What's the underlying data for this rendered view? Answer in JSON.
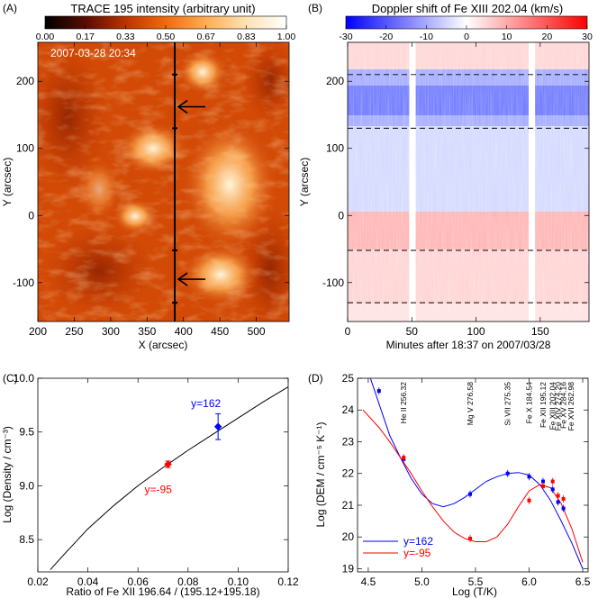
{
  "figure": {
    "panel_labels": [
      "(A)",
      "(B)",
      "(C)",
      "(D)"
    ]
  },
  "chart_data": [
    {
      "panel": "(A)",
      "type": "heatmap",
      "title": "TRACE 195 intensity (arbitrary unit)",
      "colorbar": {
        "ticks": [
          "0.00",
          "0.17",
          "0.33",
          "0.50",
          "0.67",
          "0.83",
          "1.00"
        ],
        "range": [
          0,
          1
        ],
        "colors": [
          "#000000",
          "#5a0d00",
          "#b83300",
          "#f06a10",
          "#ffae55",
          "#ffe0b0",
          "#ffffff"
        ]
      },
      "timestamp": "2007-03-28 20:34",
      "xlabel": "X (arcsec)",
      "ylabel": "Y (arcsec)",
      "xlim": [
        200,
        545
      ],
      "ylim": [
        -158,
        258
      ],
      "xticks": [
        "200",
        "250",
        "300",
        "350",
        "400",
        "450",
        "500"
      ],
      "yticks": [
        "200",
        "100",
        "0",
        "-100"
      ],
      "slit_x": 388,
      "arrows_y": [
        162,
        -95
      ],
      "slit_marks_y": [
        210,
        130,
        -52,
        -130
      ]
    },
    {
      "panel": "(B)",
      "type": "heatmap",
      "title": "Doppler shift of Fe XIII 202.04 (km/s)",
      "colorbar": {
        "ticks": [
          "-30",
          "-20",
          "-10",
          "0",
          "10",
          "20",
          "30"
        ],
        "range": [
          -30,
          30
        ],
        "colors": [
          "#0000ff",
          "#ffffff",
          "#ff0000"
        ]
      },
      "xlabel": "Minutes after 18:37 on 2007/03/28",
      "ylabel": "Y (arcsec)",
      "xlim": [
        0,
        188
      ],
      "ylim": [
        -158,
        258
      ],
      "xticks": [
        "0",
        "50",
        "100",
        "150"
      ],
      "yticks": [
        "200",
        "100",
        "0",
        "-100"
      ],
      "dashed_y": [
        210,
        130,
        -52,
        -130
      ],
      "data_gaps_min": [
        [
          48,
          53
        ],
        [
          141,
          146
        ]
      ]
    },
    {
      "panel": "(C)",
      "type": "line",
      "xlabel": "Ratio of Fe XII 196.64 / (195.12+195.18)",
      "ylabel": "Log (Density / cm⁻³)",
      "xlim": [
        0.02,
        0.12
      ],
      "ylim": [
        8.2,
        10.0
      ],
      "xticks": [
        "0.02",
        "0.04",
        "0.06",
        "0.08",
        "0.10",
        "0.12"
      ],
      "yticks": [
        "8.5",
        "9.0",
        "9.5",
        "10.0"
      ],
      "curve": {
        "x": [
          0.025,
          0.03,
          0.04,
          0.05,
          0.06,
          0.07,
          0.08,
          0.09,
          0.1,
          0.11,
          0.12
        ],
        "y": [
          8.22,
          8.35,
          8.6,
          8.81,
          9.0,
          9.17,
          9.33,
          9.48,
          9.63,
          9.78,
          9.92
        ]
      },
      "series": [
        {
          "name": "y=162",
          "color": "#0000ff",
          "x": 0.092,
          "y": 9.55,
          "yerr": 0.12
        },
        {
          "name": "y=-95",
          "color": "#ff0000",
          "x": 0.072,
          "y": 9.2,
          "yerr": 0.03
        }
      ]
    },
    {
      "panel": "(D)",
      "type": "line",
      "xlabel": "Log (T/K)",
      "ylabel": "Log (DEM / cm⁻⁵ K⁻¹)",
      "xlim": [
        4.4,
        6.55
      ],
      "ylim": [
        18.9,
        25.0
      ],
      "xticks": [
        "4.5",
        "5.0",
        "5.5",
        "6.0",
        "6.5"
      ],
      "yticks": [
        "19",
        "20",
        "21",
        "22",
        "23",
        "24",
        "25"
      ],
      "line_labels": [
        {
          "text": "He II 256.32",
          "logT": 4.83
        },
        {
          "text": "Mg V 276.58",
          "logT": 5.45
        },
        {
          "text": "Si VII 275.35",
          "logT": 5.8
        },
        {
          "text": "Fe X 184.54",
          "logT": 6.0
        },
        {
          "text": "Fe XII 195.12",
          "logT": 6.13
        },
        {
          "text": "Fe XIII 202.04",
          "logT": 6.22
        },
        {
          "text": "Fe XIV 274.20",
          "logT": 6.27
        },
        {
          "text": "Fe XV 284.16",
          "logT": 6.32
        },
        {
          "text": "Fe XVI 262.98",
          "logT": 6.39
        }
      ],
      "series": [
        {
          "name": "y=162",
          "color": "#0000ff",
          "curve_x": [
            4.52,
            4.6,
            4.7,
            4.8,
            4.9,
            5.0,
            5.1,
            5.2,
            5.3,
            5.4,
            5.5,
            5.6,
            5.7,
            5.8,
            5.9,
            6.0,
            6.1,
            6.2,
            6.3,
            6.4,
            6.5
          ],
          "curve_y": [
            25.0,
            24.2,
            23.2,
            22.5,
            21.85,
            21.35,
            21.05,
            20.95,
            21.05,
            21.25,
            21.5,
            21.75,
            21.9,
            22.0,
            22.03,
            21.95,
            21.65,
            21.15,
            20.5,
            19.8,
            19.0
          ],
          "points_x": [
            4.6,
            4.83,
            5.45,
            5.8,
            6.0,
            6.13,
            6.22,
            6.27,
            6.32
          ],
          "points_y": [
            24.6,
            22.45,
            21.35,
            22.0,
            21.9,
            21.75,
            21.5,
            21.1,
            20.9
          ]
        },
        {
          "name": "y=-95",
          "color": "#ff0000",
          "curve_x": [
            4.45,
            4.6,
            4.7,
            4.8,
            4.9,
            5.0,
            5.1,
            5.2,
            5.3,
            5.4,
            5.5,
            5.6,
            5.7,
            5.8,
            5.9,
            6.0,
            6.1,
            6.2,
            6.3,
            6.4,
            6.5
          ],
          "curve_y": [
            24.0,
            23.45,
            23.0,
            22.5,
            22.0,
            21.45,
            20.95,
            20.5,
            20.15,
            19.95,
            19.85,
            19.85,
            20.0,
            20.4,
            20.95,
            21.45,
            21.65,
            21.55,
            21.05,
            20.25,
            19.2
          ],
          "points_x": [
            4.83,
            5.45,
            6.0,
            6.13,
            6.22,
            6.27,
            6.32
          ],
          "points_y": [
            22.5,
            19.95,
            21.15,
            21.6,
            21.75,
            21.3,
            21.2
          ]
        }
      ]
    }
  ]
}
